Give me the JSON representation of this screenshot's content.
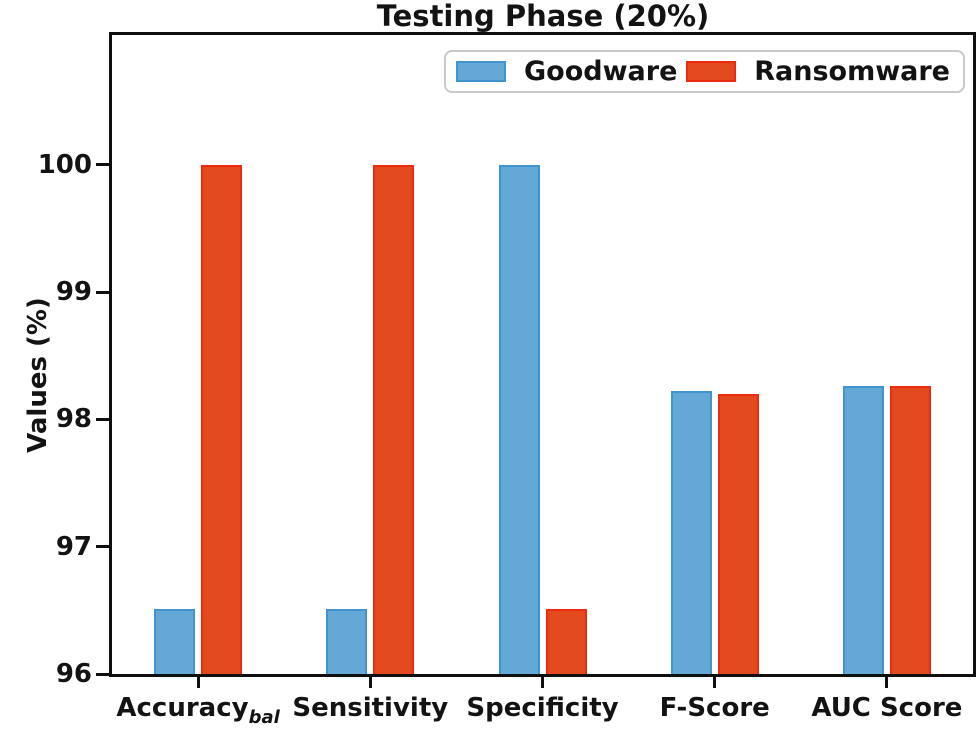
{
  "chart_data": {
    "type": "bar",
    "title": "Testing Phase (20%)",
    "ylabel": "Values (%)",
    "xlabel": "",
    "categories": [
      {
        "text": "Accuracy",
        "subscript": "bal"
      },
      {
        "text": "Sensitivity",
        "subscript": ""
      },
      {
        "text": "Specificity",
        "subscript": ""
      },
      {
        "text": "F-Score",
        "subscript": ""
      },
      {
        "text": "AUC Score",
        "subscript": ""
      }
    ],
    "series": [
      {
        "name": "Goodware",
        "values": [
          96.51,
          96.51,
          100,
          98.22,
          98.26
        ],
        "fill_color": "#63a8d6",
        "edge_color": "#4095d1"
      },
      {
        "name": "Ransomware",
        "values": [
          100,
          100,
          96.51,
          98.2,
          98.26
        ],
        "fill_color": "#e24a1d",
        "edge_color": "#ee2b10"
      }
    ],
    "ylim": [
      96,
      101.02
    ],
    "yticks": [
      96,
      97,
      98,
      99,
      100
    ],
    "grid": false,
    "legend_position": "upper center",
    "axis_color": "#0f0f0f",
    "text_color": "#131313"
  }
}
